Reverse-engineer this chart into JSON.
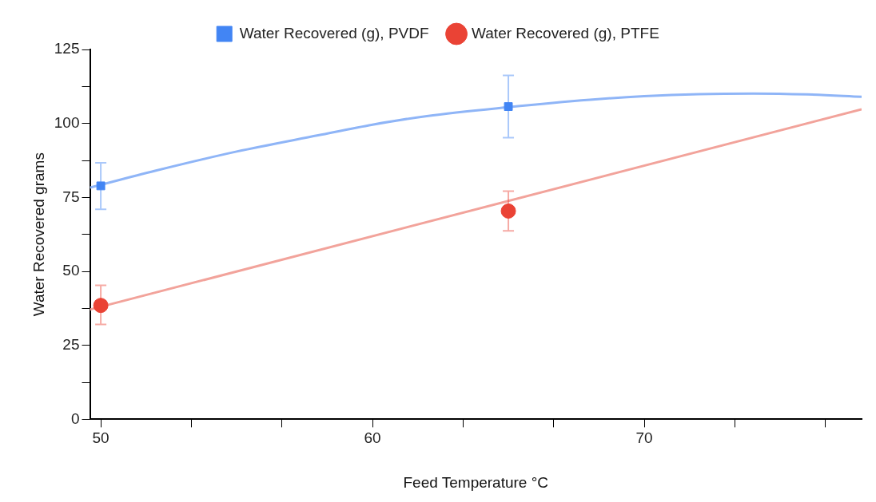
{
  "chart_data": {
    "type": "scatter",
    "xlabel": "Feed Temperature °C",
    "ylabel": "Water Recovered grams",
    "x": [
      50,
      65
    ],
    "series": [
      {
        "name": "Water Recovered (g), PVDF",
        "color": "#4285f4",
        "marker": "square",
        "values": [
          78.9,
          105.7
        ],
        "errors": [
          [
            71,
            86.7
          ],
          [
            95.2,
            116.2
          ]
        ]
      },
      {
        "name": "Water Recovered (g), PTFE",
        "color": "#ea4335",
        "marker": "circle",
        "values": [
          38.5,
          70.4
        ],
        "errors": [
          [
            32.1,
            45.3
          ],
          [
            63.7,
            77.1
          ]
        ]
      },
      {
        "type": "line",
        "color": "#8fb5f7",
        "marker": "none",
        "x": [
          49.6,
          52,
          55,
          58,
          60,
          62,
          65,
          68,
          70,
          72,
          74,
          76,
          78
        ],
        "values": [
          78.3,
          84,
          90.5,
          96,
          99.6,
          102.5,
          105.5,
          108,
          109.2,
          109.9,
          110.1,
          109.8,
          109
        ]
      },
      {
        "type": "line",
        "color": "#f2a39b",
        "marker": "none",
        "x": [
          49.6,
          78
        ],
        "values": [
          37.1,
          104.8
        ]
      }
    ],
    "xlim": [
      49.6,
      78
    ],
    "xticks": [
      50,
      {
        "value": 53.333,
        "label": null
      },
      {
        "value": 56.667,
        "label": null
      },
      60,
      {
        "value": 63.333,
        "label": null
      },
      {
        "value": 66.667,
        "label": null
      },
      70,
      {
        "value": 73.333,
        "label": null
      },
      {
        "value": 76.667,
        "label": null
      }
    ],
    "ylim": [
      0,
      125
    ],
    "yticks": [
      0,
      {
        "value": 12.5,
        "label": null
      },
      25,
      {
        "value": 37.5,
        "label": null
      },
      50,
      {
        "value": 62.5,
        "label": null
      },
      75,
      {
        "value": 87.5,
        "label": null
      },
      100,
      {
        "value": 112.5,
        "label": null
      },
      125
    ],
    "grid": false,
    "legend": "top"
  }
}
